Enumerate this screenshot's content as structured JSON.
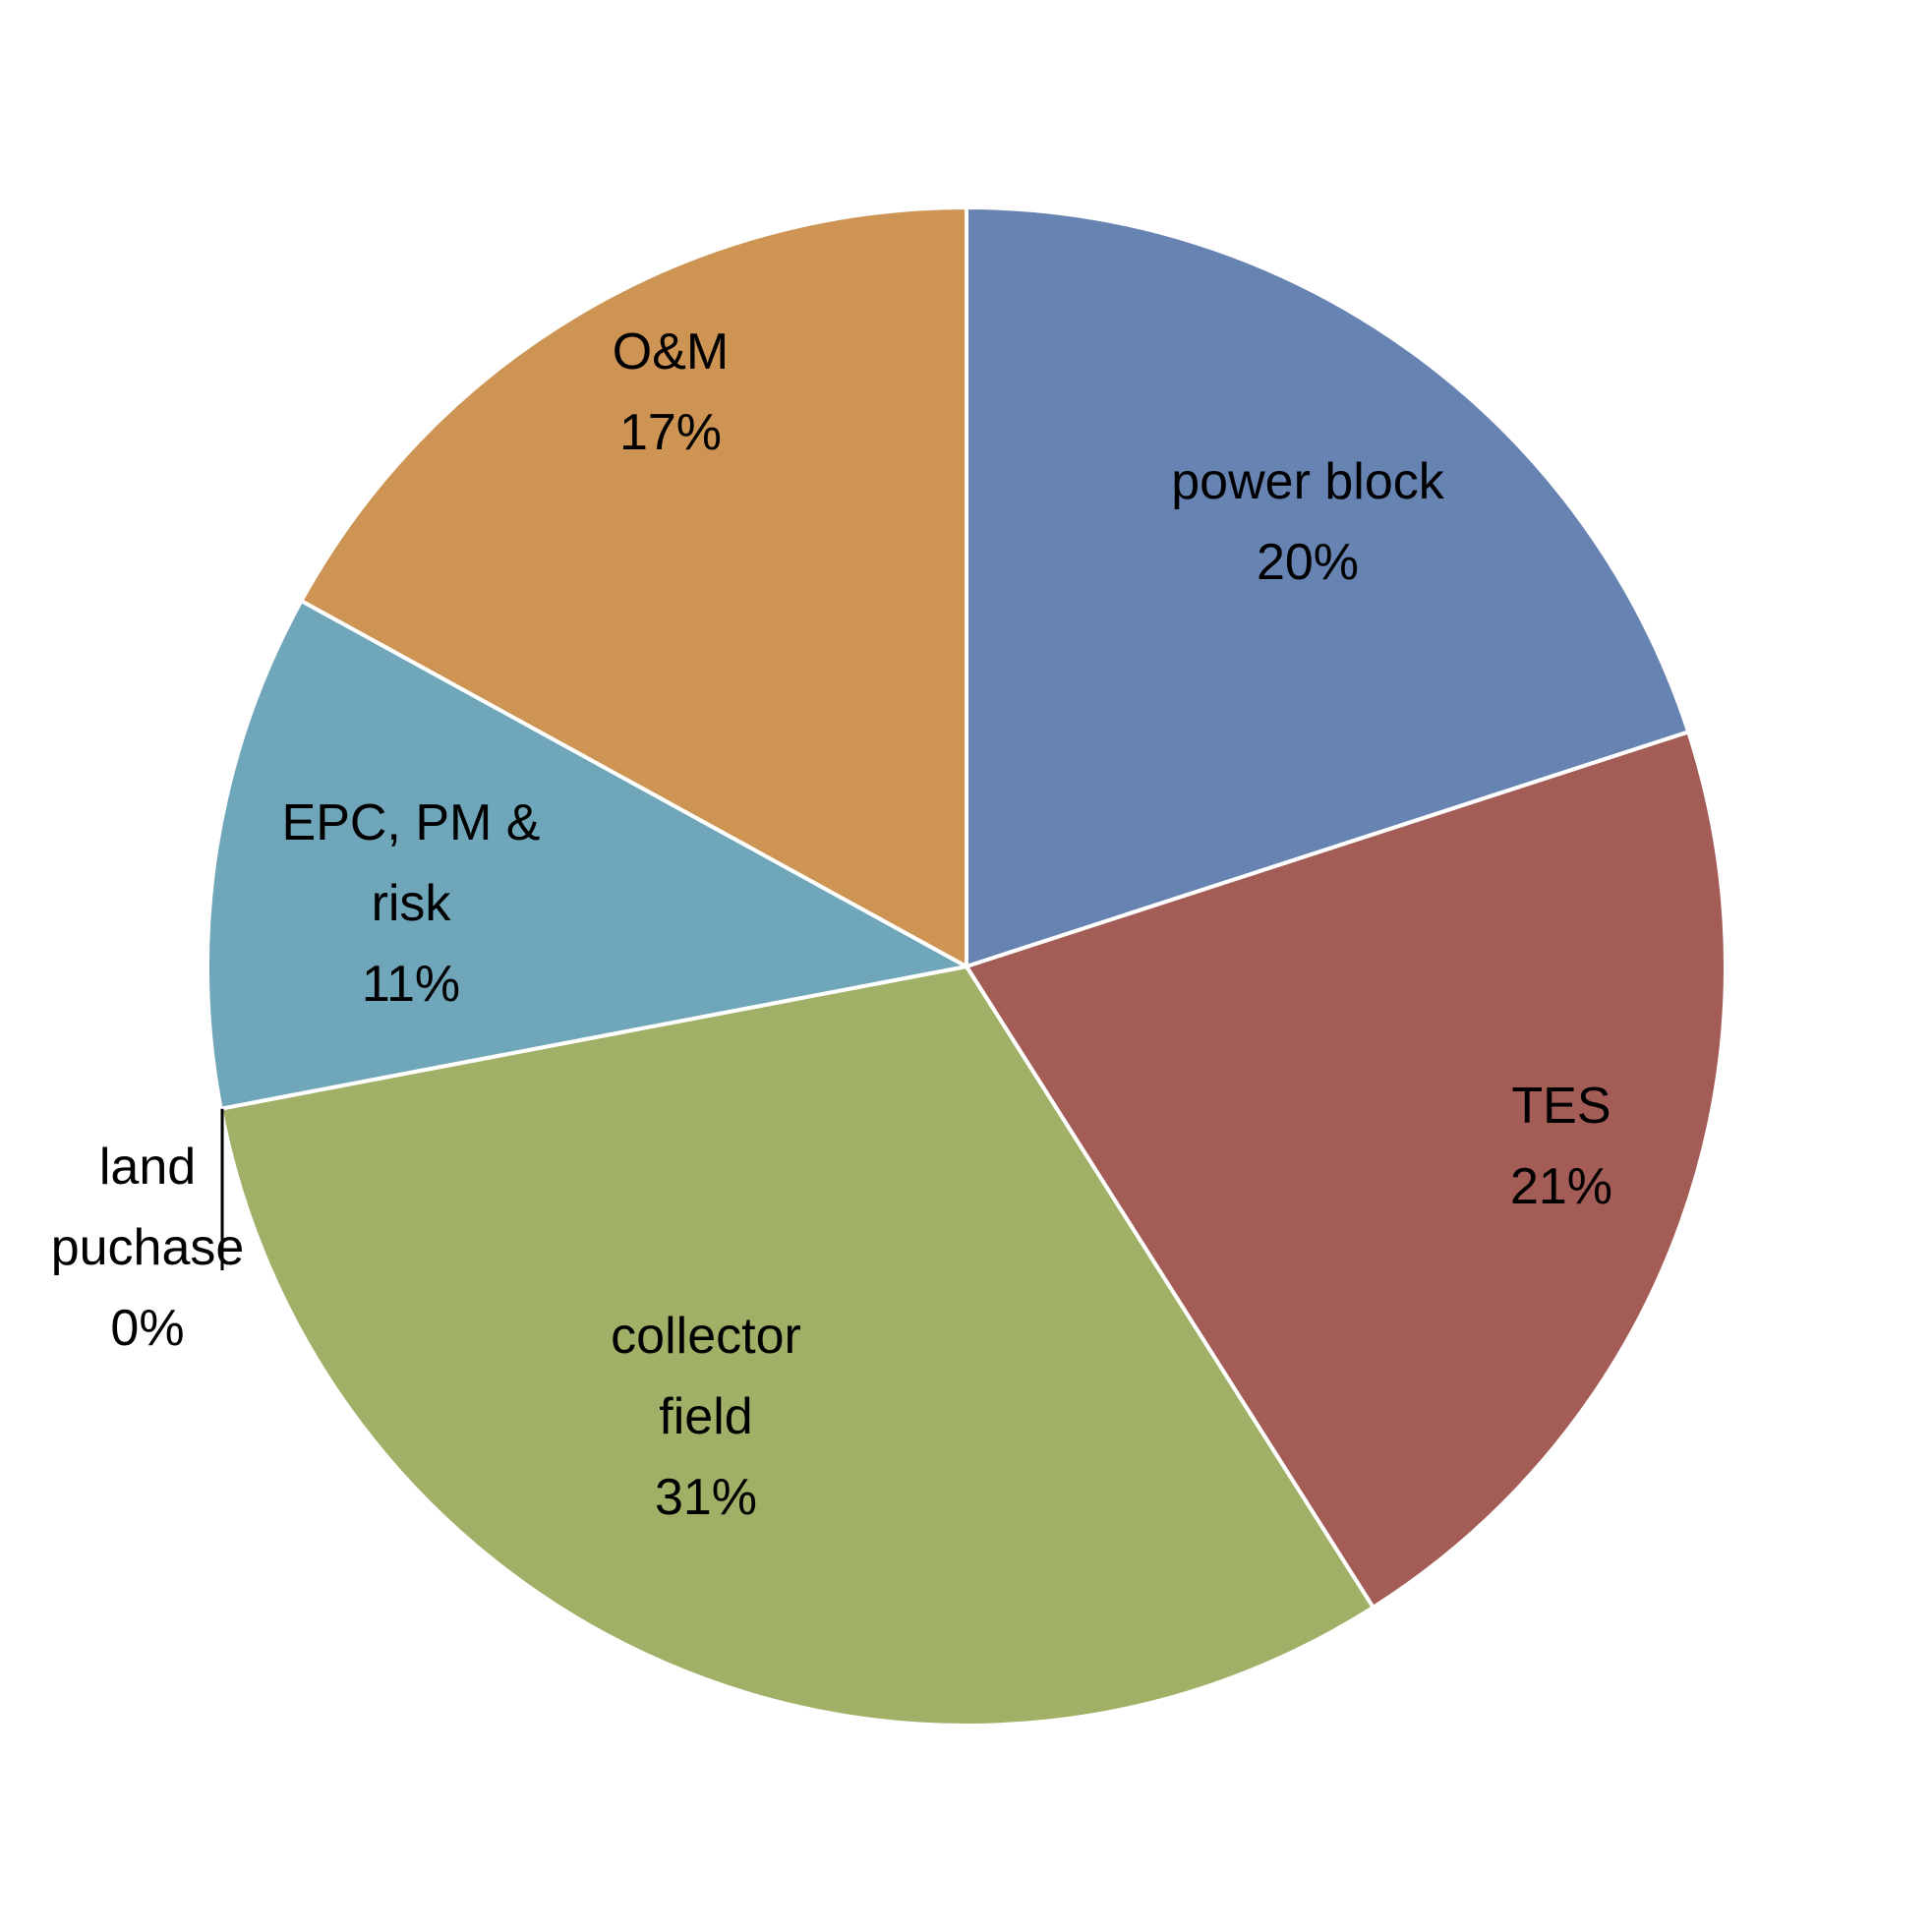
{
  "chart_data": {
    "type": "pie",
    "start": "12 o'clock",
    "direction": "clockwise",
    "slices": [
      {
        "name": "power block",
        "value": 20,
        "label_lines": [
          "power block",
          "20%"
        ],
        "color": "#6783b2"
      },
      {
        "name": "TES",
        "value": 21,
        "label_lines": [
          "TES",
          "21%"
        ],
        "color": "#a45c57"
      },
      {
        "name": "collector field",
        "value": 31,
        "label_lines": [
          "collector",
          "field",
          "31%"
        ],
        "color": "#a1b067"
      },
      {
        "name": "land puchase",
        "value": 0,
        "label_lines": [
          "land",
          "puchase",
          "0%"
        ],
        "color": "#7b6a99"
      },
      {
        "name": "EPC, PM & risk",
        "value": 11,
        "label_lines": [
          "EPC, PM &",
          "risk",
          "11%"
        ],
        "color": "#70a6ba"
      },
      {
        "name": "O&M",
        "value": 17,
        "label_lines": [
          "O&M",
          "17%"
        ],
        "color": "#cd9453"
      }
    ]
  }
}
